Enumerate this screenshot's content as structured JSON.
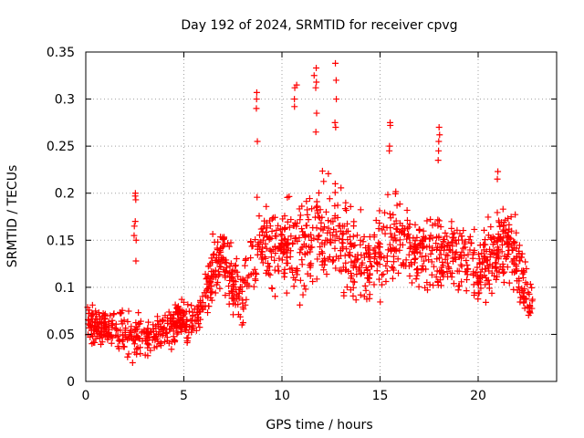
{
  "chart_data": {
    "type": "scatter",
    "title": "Day 192 of 2024, SRMTID for receiver cpvg",
    "xlabel": "GPS time / hours",
    "ylabel": "SRMTID / TECUs",
    "xlim": [
      0,
      24
    ],
    "ylim": [
      0,
      0.35
    ],
    "xticks": [
      0,
      5,
      10,
      15,
      20
    ],
    "yticks": [
      0,
      0.05,
      0.1,
      0.15,
      0.2,
      0.25,
      0.3,
      0.35
    ],
    "xtick_labels": [
      "0",
      "5",
      "10",
      "15",
      "20"
    ],
    "ytick_labels": [
      "0",
      "0.05",
      "0.1",
      "0.15",
      "0.2",
      "0.25",
      "0.3",
      "0.35"
    ],
    "grid": true,
    "marker": "+",
    "color": "#ff0000",
    "series": [
      {
        "name": "SRMTID",
        "trend": {
          "x": [
            0,
            0.5,
            1,
            1.5,
            2,
            2.5,
            3,
            3.5,
            4,
            4.5,
            5,
            5.5,
            6,
            6.5,
            7,
            7.5,
            8,
            8.5,
            9,
            9.5,
            10,
            10.5,
            11,
            11.5,
            12,
            12.5,
            13,
            13.5,
            14,
            14.5,
            15,
            15.5,
            16,
            16.5,
            17,
            17.5,
            18,
            18.5,
            19,
            19.5,
            20,
            20.5,
            21,
            21.5,
            22,
            22.5,
            22.8
          ],
          "y": [
            0.065,
            0.06,
            0.058,
            0.055,
            0.048,
            0.045,
            0.047,
            0.05,
            0.055,
            0.06,
            0.065,
            0.068,
            0.085,
            0.12,
            0.14,
            0.1,
            0.09,
            0.13,
            0.145,
            0.135,
            0.15,
            0.14,
            0.145,
            0.15,
            0.155,
            0.16,
            0.15,
            0.14,
            0.13,
            0.125,
            0.14,
            0.15,
            0.15,
            0.145,
            0.14,
            0.135,
            0.14,
            0.13,
            0.14,
            0.13,
            0.12,
            0.13,
            0.14,
            0.15,
            0.12,
            0.09,
            0.085
          ],
          "spread": [
            0.02,
            0.018,
            0.018,
            0.02,
            0.02,
            0.02,
            0.02,
            0.02,
            0.02,
            0.022,
            0.02,
            0.018,
            0.025,
            0.03,
            0.03,
            0.03,
            0.03,
            0.04,
            0.045,
            0.04,
            0.045,
            0.045,
            0.045,
            0.05,
            0.05,
            0.05,
            0.05,
            0.045,
            0.045,
            0.04,
            0.04,
            0.04,
            0.04,
            0.04,
            0.04,
            0.04,
            0.04,
            0.035,
            0.035,
            0.035,
            0.035,
            0.035,
            0.035,
            0.035,
            0.035,
            0.03,
            0.025
          ]
        },
        "highlights": [
          {
            "x": 2.5,
            "y": [
              0.2,
              0.197,
              0.193,
              0.17,
              0.165,
              0.155,
              0.15,
              0.128
            ]
          },
          {
            "x": 8.75,
            "y": [
              0.307,
              0.3,
              0.29,
              0.255
            ]
          },
          {
            "x": 10.7,
            "y": [
              0.315,
              0.312,
              0.3,
              0.292
            ]
          },
          {
            "x": 11.7,
            "y": [
              0.333,
              0.325,
              0.318,
              0.312,
              0.285,
              0.265
            ]
          },
          {
            "x": 12.7,
            "y": [
              0.338,
              0.32,
              0.3,
              0.275,
              0.27
            ]
          },
          {
            "x": 15.5,
            "y": [
              0.275,
              0.272,
              0.25,
              0.245
            ]
          },
          {
            "x": 18.0,
            "y": [
              0.27,
              0.262,
              0.255,
              0.245,
              0.235
            ]
          },
          {
            "x": 21.0,
            "y": [
              0.223,
              0.215
            ]
          }
        ]
      }
    ]
  }
}
